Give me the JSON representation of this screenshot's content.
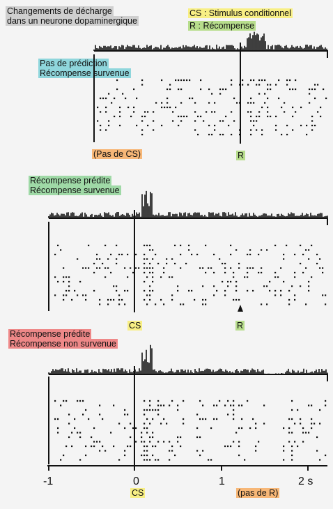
{
  "header": {
    "title_line1": "Changements de décharge",
    "title_line2": "dans un neurone dopaminergique",
    "legend_cs": "CS  : Stimulus conditionnel",
    "legend_r": "R : Récompense"
  },
  "panels": [
    {
      "label_line1": "Pas de prédiction",
      "label_line2": "Récompense survenue",
      "marker_left": "(Pas de CS)",
      "marker_right": "R",
      "colors": {
        "label": "#8fd6dc",
        "left": "#f7b777",
        "right": "#b7dd8c"
      }
    },
    {
      "label_line1": "Récompense prédite",
      "label_line2": "Récompense survenue",
      "marker_left": "CS",
      "marker_right": "R",
      "colors": {
        "label": "#9fd9a6",
        "left": "#f8ef84",
        "right": "#b7dd8c"
      }
    },
    {
      "label_line1": "Récompense prédite",
      "label_line2": "Récompense  non survenue",
      "marker_left": "CS",
      "marker_right": "(pas de R)",
      "colors": {
        "label": "#ee8888",
        "left": "#f8ef84",
        "right": "#f7b777"
      }
    }
  ],
  "axis": {
    "ticks": [
      "-1",
      "0",
      "1",
      "2 s"
    ],
    "range_s": [
      -1,
      2.2
    ]
  }
}
